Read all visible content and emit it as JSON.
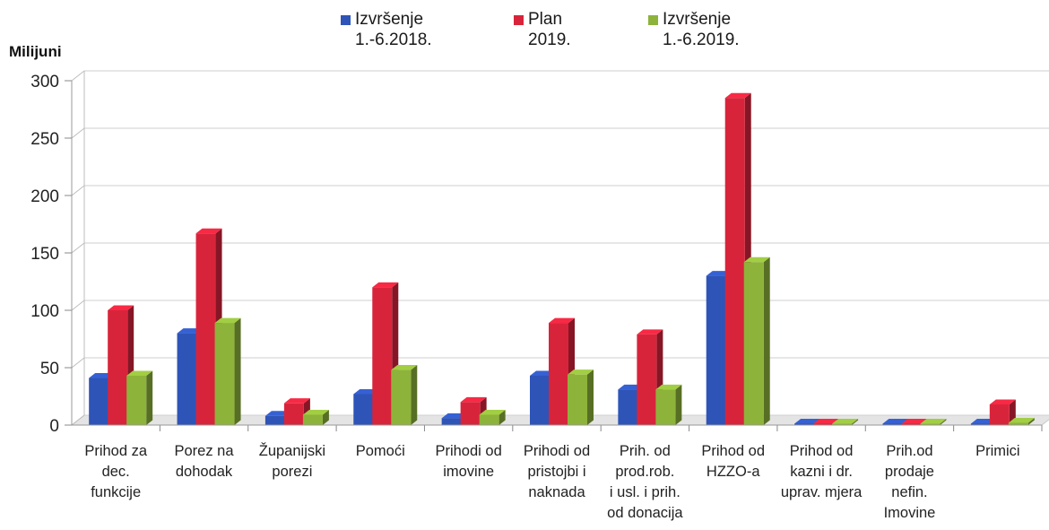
{
  "chart_data": {
    "type": "bar",
    "ylabel": "Milijuni",
    "ylim": [
      0,
      300
    ],
    "yticks": [
      "0",
      "50",
      "100",
      "150",
      "200",
      "250",
      "300"
    ],
    "grid": true,
    "legend_position": "top",
    "categories": [
      "Prihod za\ndec.\nfunkcije",
      "Porez na\ndohodak",
      "Županijski\nporezi",
      "Pomoći",
      "Prihodi od\nimovine",
      "Prihodi od\npristojbi i\nnaknada",
      "Prih. od\nprod.rob.\ni usl. i prih.\nod donacija",
      "Prihod od\nHZZO-a",
      "Prihod od\nkazni i dr.\nuprav. mjera",
      "Prih.od\nprodaje\nnefin.\nImovine",
      "Primici"
    ],
    "series": [
      {
        "name": "Izvršenje\n1.-6.2018.",
        "color": "#2E54B8",
        "values": [
          41,
          80,
          8,
          27,
          6,
          43,
          31,
          130,
          1,
          1,
          1
        ]
      },
      {
        "name": "Plan\n2019.",
        "color": "#D8243B",
        "values": [
          100,
          167,
          19,
          120,
          20,
          89,
          79,
          285,
          1,
          1,
          18
        ]
      },
      {
        "name": "Izvršenje\n1.-6.2019.",
        "color": "#8DB33A",
        "values": [
          43,
          89,
          9,
          48,
          9,
          44,
          31,
          142,
          1,
          1,
          2
        ]
      }
    ]
  }
}
